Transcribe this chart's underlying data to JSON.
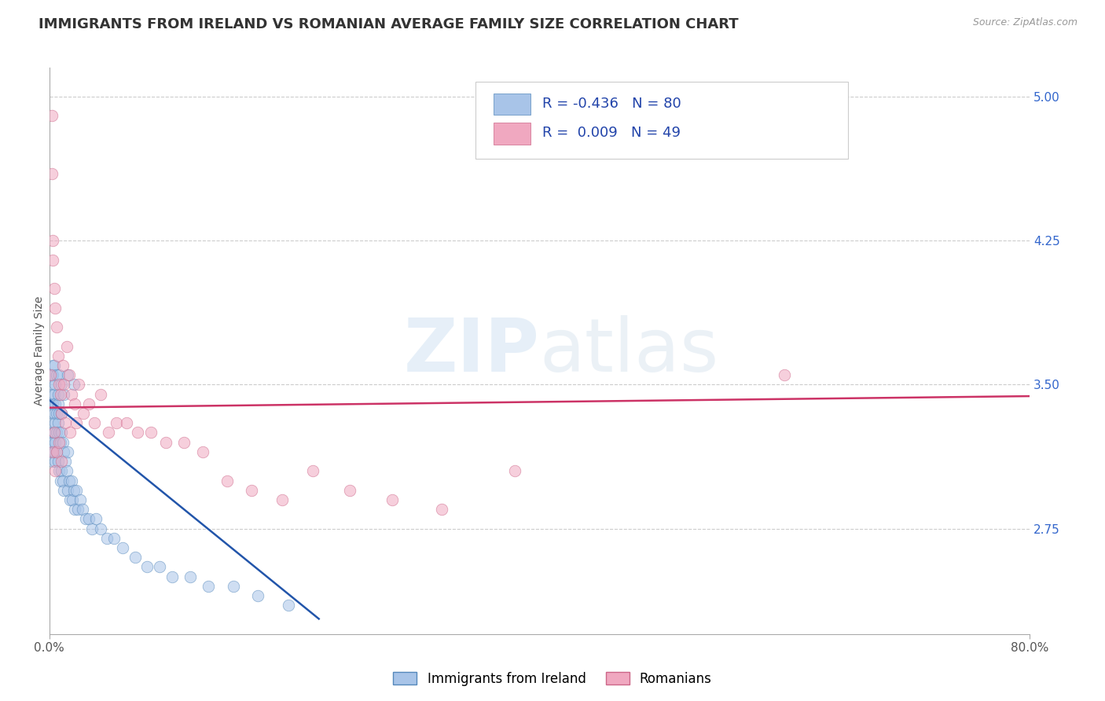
{
  "title": "IMMIGRANTS FROM IRELAND VS ROMANIAN AVERAGE FAMILY SIZE CORRELATION CHART",
  "source": "Source: ZipAtlas.com",
  "ylabel": "Average Family Size",
  "xlim": [
    0.0,
    0.8
  ],
  "ylim": [
    2.2,
    5.15
  ],
  "yticks_right": [
    2.75,
    3.5,
    4.25,
    5.0
  ],
  "grid_color": "#cccccc",
  "background_color": "#ffffff",
  "watermark_zip": "ZIP",
  "watermark_atlas": "atlas",
  "legend_r_blue": "-0.436",
  "legend_n_blue": "80",
  "legend_r_pink": "0.009",
  "legend_n_pink": "49",
  "blue_color": "#a8c4e8",
  "pink_color": "#f0a8c0",
  "blue_edge": "#5588bb",
  "pink_edge": "#cc6688",
  "trend_blue": "#2255aa",
  "trend_pink": "#cc3366",
  "blue_scatter_x": [
    0.001,
    0.001,
    0.001,
    0.002,
    0.002,
    0.002,
    0.002,
    0.002,
    0.003,
    0.003,
    0.003,
    0.003,
    0.003,
    0.004,
    0.004,
    0.004,
    0.004,
    0.005,
    0.005,
    0.005,
    0.005,
    0.006,
    0.006,
    0.006,
    0.007,
    0.007,
    0.007,
    0.008,
    0.008,
    0.008,
    0.009,
    0.009,
    0.01,
    0.01,
    0.01,
    0.011,
    0.011,
    0.012,
    0.012,
    0.013,
    0.014,
    0.015,
    0.015,
    0.016,
    0.017,
    0.018,
    0.019,
    0.02,
    0.021,
    0.022,
    0.023,
    0.025,
    0.027,
    0.03,
    0.032,
    0.035,
    0.038,
    0.042,
    0.047,
    0.053,
    0.06,
    0.07,
    0.08,
    0.09,
    0.1,
    0.115,
    0.13,
    0.15,
    0.17,
    0.195,
    0.003,
    0.004,
    0.005,
    0.006,
    0.007,
    0.008,
    0.01,
    0.012,
    0.015,
    0.02
  ],
  "blue_scatter_y": [
    3.4,
    3.2,
    3.5,
    3.35,
    3.15,
    3.45,
    3.25,
    3.55,
    3.3,
    3.1,
    3.4,
    3.6,
    3.2,
    3.35,
    3.15,
    3.45,
    3.25,
    3.3,
    3.1,
    3.4,
    3.2,
    3.35,
    3.15,
    3.25,
    3.3,
    3.1,
    3.4,
    3.25,
    3.05,
    3.35,
    3.2,
    3.0,
    3.25,
    3.05,
    3.35,
    3.2,
    3.0,
    3.15,
    2.95,
    3.1,
    3.05,
    2.95,
    3.15,
    3.0,
    2.9,
    3.0,
    2.9,
    2.95,
    2.85,
    2.95,
    2.85,
    2.9,
    2.85,
    2.8,
    2.8,
    2.75,
    2.8,
    2.75,
    2.7,
    2.7,
    2.65,
    2.6,
    2.55,
    2.55,
    2.5,
    2.5,
    2.45,
    2.45,
    2.4,
    2.35,
    3.55,
    3.6,
    3.5,
    3.55,
    3.45,
    3.55,
    3.5,
    3.45,
    3.55,
    3.5
  ],
  "pink_scatter_x": [
    0.001,
    0.002,
    0.002,
    0.003,
    0.003,
    0.004,
    0.005,
    0.006,
    0.007,
    0.008,
    0.009,
    0.01,
    0.011,
    0.012,
    0.014,
    0.016,
    0.018,
    0.021,
    0.024,
    0.028,
    0.032,
    0.037,
    0.042,
    0.048,
    0.055,
    0.063,
    0.072,
    0.083,
    0.095,
    0.11,
    0.125,
    0.145,
    0.165,
    0.19,
    0.215,
    0.245,
    0.28,
    0.32,
    0.38,
    0.6,
    0.003,
    0.004,
    0.005,
    0.006,
    0.008,
    0.01,
    0.013,
    0.017,
    0.022
  ],
  "pink_scatter_y": [
    3.55,
    4.9,
    4.6,
    4.25,
    4.15,
    4.0,
    3.9,
    3.8,
    3.65,
    3.5,
    3.45,
    3.35,
    3.6,
    3.5,
    3.7,
    3.55,
    3.45,
    3.4,
    3.5,
    3.35,
    3.4,
    3.3,
    3.45,
    3.25,
    3.3,
    3.3,
    3.25,
    3.25,
    3.2,
    3.2,
    3.15,
    3.0,
    2.95,
    2.9,
    3.05,
    2.95,
    2.9,
    2.85,
    3.05,
    3.55,
    3.15,
    3.25,
    3.05,
    3.15,
    3.2,
    3.1,
    3.3,
    3.25,
    3.3
  ],
  "blue_trend_x": [
    0.0,
    0.22
  ],
  "blue_trend_y": [
    3.42,
    2.28
  ],
  "pink_trend_x": [
    0.0,
    0.8
  ],
  "pink_trend_y": [
    3.38,
    3.44
  ],
  "marker_size": 110,
  "marker_alpha": 0.55,
  "title_fontsize": 13,
  "label_fontsize": 10,
  "tick_fontsize": 11,
  "legend_fontsize": 13
}
